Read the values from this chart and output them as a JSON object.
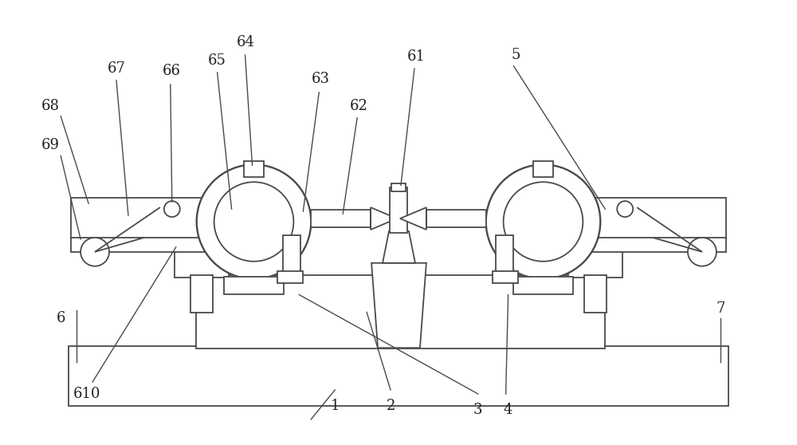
{
  "bg_color": "#ffffff",
  "line_color": "#4a4a4a",
  "line_width": 1.3,
  "fig_width": 10.0,
  "fig_height": 5.58,
  "annotation_color": "#4a4a4a",
  "annotation_lw": 1.0,
  "label_fontsize": 13,
  "label_color": "#222222"
}
